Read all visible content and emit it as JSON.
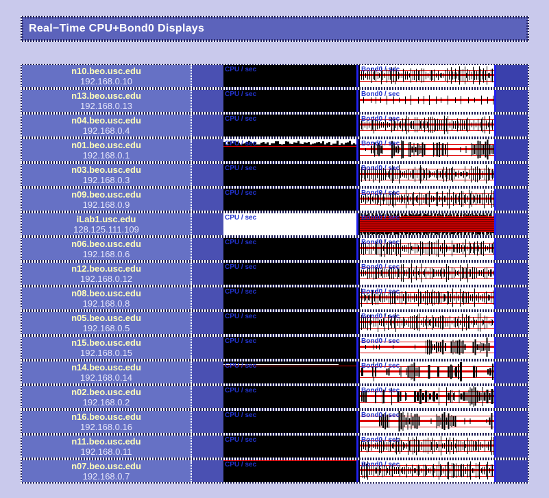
{
  "page": {
    "title": "Real−Time CPU+Bond0 Displays",
    "background": "#c9c9ec"
  },
  "charts": {
    "cpu_label": "CPU / sec",
    "bond0_label": "Bond0 / sec",
    "label_color": "#2233cc",
    "trace_red": "#dd0000",
    "spike_black": "#000000",
    "edge_marker_blue": "#2222ee",
    "cpu_bg": "#000000",
    "bond0_bg": "#ffffff"
  },
  "colors": {
    "page_bg": "#c9c9ec",
    "titlebar_bg": "#5c63bb",
    "host_cell_bg": "#6671c5",
    "hostname_text": "#ffffbb",
    "ip_text": "#e6e6fa",
    "left_spacer_bg": "#4a50b2",
    "right_spacer_bg": "#3a40ac",
    "dotted_border": "#ffffff"
  },
  "hosts": [
    {
      "name": "n10.beo.usc.edu",
      "ip": "192.168.0.10",
      "cpu_activity": "idle",
      "bond0_activity": "dense",
      "inverted": false
    },
    {
      "name": "n13.beo.usc.edu",
      "ip": "192.168.0.13",
      "cpu_activity": "idle",
      "bond0_activity": "sparse",
      "inverted": false
    },
    {
      "name": "n04.beo.usc.edu",
      "ip": "192.168.0.4",
      "cpu_activity": "idle",
      "bond0_activity": "dense",
      "inverted": false
    },
    {
      "name": "n01.beo.usc.edu",
      "ip": "192.168.0.1",
      "cpu_activity": "active",
      "bond0_activity": "bursts",
      "inverted": false
    },
    {
      "name": "n03.beo.usc.edu",
      "ip": "192.168.0.3",
      "cpu_activity": "idle",
      "bond0_activity": "dense",
      "inverted": false
    },
    {
      "name": "n09.beo.usc.edu",
      "ip": "192.168.0.9",
      "cpu_activity": "idle",
      "bond0_activity": "dense",
      "inverted": false
    },
    {
      "name": "iLab1.usc.edu",
      "ip": "128.125.111.109",
      "cpu_activity": "saturated-white",
      "bond0_activity": "saturated",
      "inverted": true
    },
    {
      "name": "n06.beo.usc.edu",
      "ip": "192.168.0.6",
      "cpu_activity": "idle",
      "bond0_activity": "dense",
      "inverted": false
    },
    {
      "name": "n12.beo.usc.edu",
      "ip": "192.168.0.12",
      "cpu_activity": "idle",
      "bond0_activity": "dense",
      "inverted": false
    },
    {
      "name": "n08.beo.usc.edu",
      "ip": "192.168.0.8",
      "cpu_activity": "idle",
      "bond0_activity": "dense",
      "inverted": false
    },
    {
      "name": "n05.beo.usc.edu",
      "ip": "192.168.0.5",
      "cpu_activity": "idle",
      "bond0_activity": "dense",
      "inverted": false
    },
    {
      "name": "n15.beo.usc.edu",
      "ip": "192.168.0.15",
      "cpu_activity": "idle",
      "bond0_activity": "bursts",
      "inverted": false
    },
    {
      "name": "n14.beo.usc.edu",
      "ip": "192.168.0.14",
      "cpu_activity": "low",
      "bond0_activity": "heavy",
      "inverted": false
    },
    {
      "name": "n02.beo.usc.edu",
      "ip": "192.168.0.2",
      "cpu_activity": "idle",
      "bond0_activity": "heavy",
      "inverted": false
    },
    {
      "name": "n16.beo.usc.edu",
      "ip": "192.168.0.16",
      "cpu_activity": "idle",
      "bond0_activity": "bursts",
      "inverted": false
    },
    {
      "name": "n11.beo.usc.edu",
      "ip": "192.168.0.11",
      "cpu_activity": "idle",
      "bond0_activity": "dense",
      "inverted": false
    },
    {
      "name": "n07.beo.usc.edu",
      "ip": "192.168.0.7",
      "cpu_activity": "idle-topline",
      "bond0_activity": "dense",
      "inverted": false
    }
  ]
}
